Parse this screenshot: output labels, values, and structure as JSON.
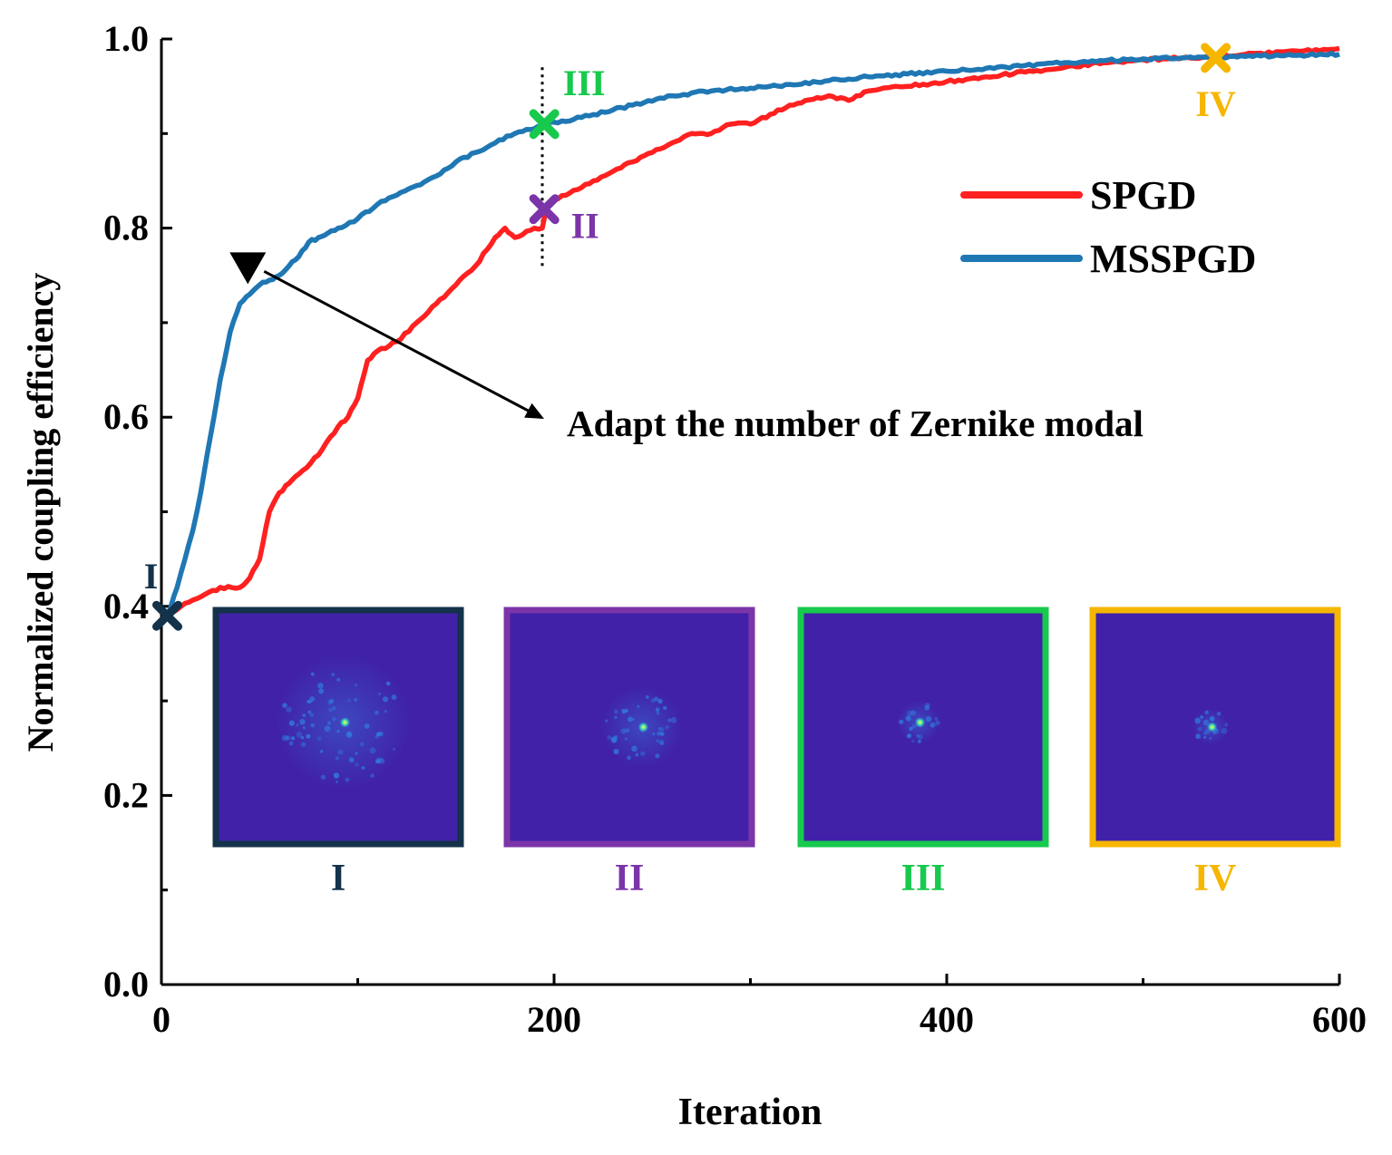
{
  "chart_data": {
    "type": "line",
    "xlabel": "Iteration",
    "ylabel": "Normalized coupling efficiency",
    "xlim": [
      0,
      600
    ],
    "ylim": [
      0.0,
      1.0
    ],
    "x_ticks": [
      0,
      200,
      400,
      600
    ],
    "x_tick_labels": [
      "0",
      "200",
      "400",
      "600"
    ],
    "y_ticks": [
      0.0,
      0.2,
      0.4,
      0.6,
      0.8,
      1.0
    ],
    "y_tick_labels": [
      "0.0",
      "0.2",
      "0.4",
      "0.6",
      "0.8",
      "1.0"
    ],
    "legend_position": "right",
    "series": [
      {
        "name": "SPGD",
        "color": "#ff2020",
        "x": [
          3,
          10,
          20,
          30,
          40,
          45,
          50,
          55,
          60,
          65,
          70,
          80,
          90,
          95,
          100,
          105,
          110,
          120,
          130,
          140,
          150,
          160,
          170,
          175,
          180,
          190,
          194,
          196,
          200,
          210,
          220,
          230,
          240,
          250,
          260,
          270,
          280,
          290,
          300,
          320,
          340,
          350,
          360,
          380,
          400,
          420,
          440,
          460,
          480,
          500,
          520,
          540,
          560,
          580,
          600
        ],
        "y": [
          0.39,
          0.4,
          0.41,
          0.42,
          0.42,
          0.43,
          0.45,
          0.5,
          0.52,
          0.53,
          0.54,
          0.56,
          0.59,
          0.6,
          0.62,
          0.66,
          0.67,
          0.68,
          0.7,
          0.72,
          0.74,
          0.76,
          0.79,
          0.8,
          0.79,
          0.8,
          0.8,
          0.82,
          0.83,
          0.84,
          0.85,
          0.86,
          0.87,
          0.88,
          0.89,
          0.9,
          0.9,
          0.91,
          0.91,
          0.93,
          0.94,
          0.935,
          0.945,
          0.95,
          0.955,
          0.96,
          0.965,
          0.97,
          0.975,
          0.978,
          0.98,
          0.982,
          0.985,
          0.987,
          0.99
        ]
      },
      {
        "name": "MSSPGD",
        "color": "#1f77b4",
        "x": [
          3,
          8,
          12,
          16,
          20,
          25,
          30,
          35,
          40,
          45,
          50,
          55,
          60,
          65,
          70,
          75,
          80,
          85,
          90,
          100,
          110,
          120,
          130,
          140,
          150,
          160,
          170,
          180,
          190,
          195,
          200,
          210,
          220,
          230,
          240,
          260,
          280,
          300,
          320,
          340,
          360,
          380,
          400,
          420,
          440,
          460,
          480,
          500,
          520,
          540,
          560,
          580,
          600
        ],
        "y": [
          0.39,
          0.42,
          0.45,
          0.48,
          0.52,
          0.58,
          0.64,
          0.69,
          0.72,
          0.73,
          0.74,
          0.745,
          0.75,
          0.76,
          0.77,
          0.785,
          0.79,
          0.795,
          0.8,
          0.81,
          0.825,
          0.835,
          0.845,
          0.855,
          0.87,
          0.88,
          0.89,
          0.9,
          0.905,
          0.91,
          0.912,
          0.915,
          0.92,
          0.925,
          0.93,
          0.94,
          0.945,
          0.948,
          0.952,
          0.956,
          0.96,
          0.963,
          0.966,
          0.969,
          0.972,
          0.975,
          0.977,
          0.979,
          0.98,
          0.981,
          0.982,
          0.983,
          0.984
        ]
      }
    ],
    "markers": [
      {
        "label": "I",
        "x": 3,
        "y": 0.39,
        "color": "#14324a"
      },
      {
        "label": "II",
        "x": 195,
        "y": 0.82,
        "color": "#7b35a8"
      },
      {
        "label": "III",
        "x": 195,
        "y": 0.91,
        "color": "#17c94d"
      },
      {
        "label": "IV",
        "x": 537,
        "y": 0.98,
        "color": "#f6b600"
      }
    ],
    "vertical_line_x": 194,
    "annotation": {
      "text": "Adapt the number of Zernike modal",
      "triangle_point": {
        "x": 44,
        "y": 0.76
      }
    },
    "insets": [
      {
        "label": "I",
        "border_color": "#14324a"
      },
      {
        "label": "II",
        "border_color": "#7b35a8"
      },
      {
        "label": "III",
        "border_color": "#17c94d"
      },
      {
        "label": "IV",
        "border_color": "#f6b600"
      }
    ]
  }
}
